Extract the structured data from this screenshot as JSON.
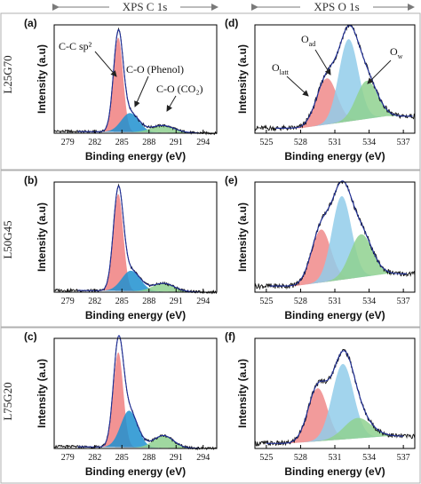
{
  "figure": {
    "col_headers": [
      "XPS C 1s",
      "XPS O 1s"
    ],
    "row_labels": [
      "L25G70",
      "L50G45",
      "L75G20"
    ],
    "panel_letters": [
      "(a)",
      "(d)",
      "(b)",
      "(e)",
      "(c)",
      "(f)"
    ],
    "xlabel": "Binding energy (eV)",
    "ylabel": "Intensity (a.u)",
    "c1s_xticks": [
      "279",
      "282",
      "285",
      "288",
      "291",
      "294"
    ],
    "o1s_xticks": [
      "525",
      "528",
      "531",
      "534",
      "537"
    ],
    "c1s_labels": {
      "sp2": "C-C sp²",
      "phenol": "C-O (Phenol)",
      "co2": "C-O (CO₂)"
    },
    "o1s_labels": {
      "latt": "O",
      "latt_sub": "latt",
      "ad": "O",
      "ad_sub": "ad",
      "w": "O",
      "w_sub": "w"
    }
  },
  "colors": {
    "sp2": "#f08080",
    "phenol": "#1e90d0",
    "co2": "#8fd18f",
    "o_latt": "#f08a8a",
    "o_ad": "#92cdea",
    "o_w": "#8fd18f",
    "envelope": "#1f2f9a",
    "raw": "#111111",
    "frame_border": "#b0b0b0",
    "header_arrow": "#7a7a7a"
  },
  "chart_data": [
    {
      "panel": "(a)",
      "type": "line",
      "series_group": "C 1s",
      "sample": "L25G70",
      "xlabel": "Binding energy (eV)",
      "ylabel": "Intensity (a.u)",
      "xlim": [
        277.5,
        295.5
      ],
      "ylim": [
        0,
        1.08
      ],
      "baseline": [
        [
          277.5,
          0.02
        ],
        [
          295.5,
          0.0
        ]
      ],
      "peaks": [
        {
          "name": "C-C sp²",
          "color_key": "sp2",
          "center": 284.6,
          "fwhm": 1.25,
          "height": 0.94
        },
        {
          "name": "C-O (Phenol)",
          "color_key": "phenol",
          "center": 285.9,
          "fwhm": 2.3,
          "height": 0.19
        },
        {
          "name": "C-O (CO₂)",
          "color_key": "co2",
          "center": 289.5,
          "fwhm": 3.0,
          "height": 0.07
        }
      ]
    },
    {
      "panel": "(d)",
      "type": "line",
      "series_group": "O 1s",
      "sample": "L25G70",
      "xlabel": "Binding energy (eV)",
      "ylabel": "Intensity (a.u)",
      "xlim": [
        524,
        538
      ],
      "ylim": [
        0,
        1.08
      ],
      "baseline": [
        [
          528.0,
          0.05
        ],
        [
          535.5,
          0.17
        ]
      ],
      "peaks": [
        {
          "name": "O latt",
          "color_key": "o_latt",
          "center": 530.3,
          "fwhm": 2.1,
          "height": 0.46
        },
        {
          "name": "O ad",
          "color_key": "o_ad",
          "center": 532.2,
          "fwhm": 2.0,
          "height": 0.82
        },
        {
          "name": "O w",
          "color_key": "o_w",
          "center": 533.8,
          "fwhm": 2.2,
          "height": 0.38
        }
      ]
    },
    {
      "panel": "(b)",
      "type": "line",
      "series_group": "C 1s",
      "sample": "L50G45",
      "xlabel": "Binding energy (eV)",
      "ylabel": "Intensity (a.u)",
      "xlim": [
        277.5,
        295.5
      ],
      "ylim": [
        0,
        1.08
      ],
      "baseline": [
        [
          277.5,
          0.02
        ],
        [
          295.5,
          0.0
        ]
      ],
      "peaks": [
        {
          "name": "C-C sp²",
          "color_key": "sp2",
          "center": 284.6,
          "fwhm": 1.3,
          "height": 0.95
        },
        {
          "name": "C-O (Phenol)",
          "color_key": "phenol",
          "center": 286.0,
          "fwhm": 2.4,
          "height": 0.2
        },
        {
          "name": "C-O (CO₂)",
          "color_key": "co2",
          "center": 289.6,
          "fwhm": 2.8,
          "height": 0.08
        }
      ]
    },
    {
      "panel": "(e)",
      "type": "line",
      "series_group": "O 1s",
      "sample": "L50G45",
      "xlabel": "Binding energy (eV)",
      "ylabel": "Intensity (a.u)",
      "xlim": [
        524,
        538
      ],
      "ylim": [
        0,
        1.08
      ],
      "baseline": [
        [
          527.5,
          0.06
        ],
        [
          535.5,
          0.18
        ]
      ],
      "peaks": [
        {
          "name": "O latt",
          "color_key": "o_latt",
          "center": 529.8,
          "fwhm": 2.0,
          "height": 0.52
        },
        {
          "name": "O ad",
          "color_key": "o_ad",
          "center": 531.6,
          "fwhm": 2.0,
          "height": 0.82
        },
        {
          "name": "O w",
          "color_key": "o_w",
          "center": 533.3,
          "fwhm": 2.3,
          "height": 0.42
        }
      ]
    },
    {
      "panel": "(c)",
      "type": "line",
      "series_group": "C 1s",
      "sample": "L75G20",
      "xlabel": "Binding energy (eV)",
      "ylabel": "Intensity (a.u)",
      "xlim": [
        277.5,
        295.5
      ],
      "ylim": [
        0,
        1.08
      ],
      "baseline": [
        [
          277.5,
          0.02
        ],
        [
          295.5,
          0.0
        ]
      ],
      "peaks": [
        {
          "name": "C-C sp²",
          "color_key": "sp2",
          "center": 284.6,
          "fwhm": 1.3,
          "height": 0.93
        },
        {
          "name": "C-O (Phenol)",
          "color_key": "phenol",
          "center": 285.8,
          "fwhm": 2.2,
          "height": 0.36
        },
        {
          "name": "C-O (CO₂)",
          "color_key": "co2",
          "center": 289.6,
          "fwhm": 2.6,
          "height": 0.12
        }
      ]
    },
    {
      "panel": "(f)",
      "type": "line",
      "series_group": "O 1s",
      "sample": "L75G20",
      "xlabel": "Binding energy (eV)",
      "ylabel": "Intensity (a.u)",
      "xlim": [
        524,
        538
      ],
      "ylim": [
        0,
        1.08
      ],
      "baseline": [
        [
          527.0,
          0.05
        ],
        [
          535.5,
          0.12
        ]
      ],
      "peaks": [
        {
          "name": "O latt",
          "color_key": "o_latt",
          "center": 529.5,
          "fwhm": 2.0,
          "height": 0.52
        },
        {
          "name": "O ad",
          "color_key": "o_ad",
          "center": 531.7,
          "fwhm": 2.2,
          "height": 0.74
        },
        {
          "name": "O w",
          "color_key": "o_w",
          "center": 533.0,
          "fwhm": 2.8,
          "height": 0.2
        }
      ]
    }
  ]
}
